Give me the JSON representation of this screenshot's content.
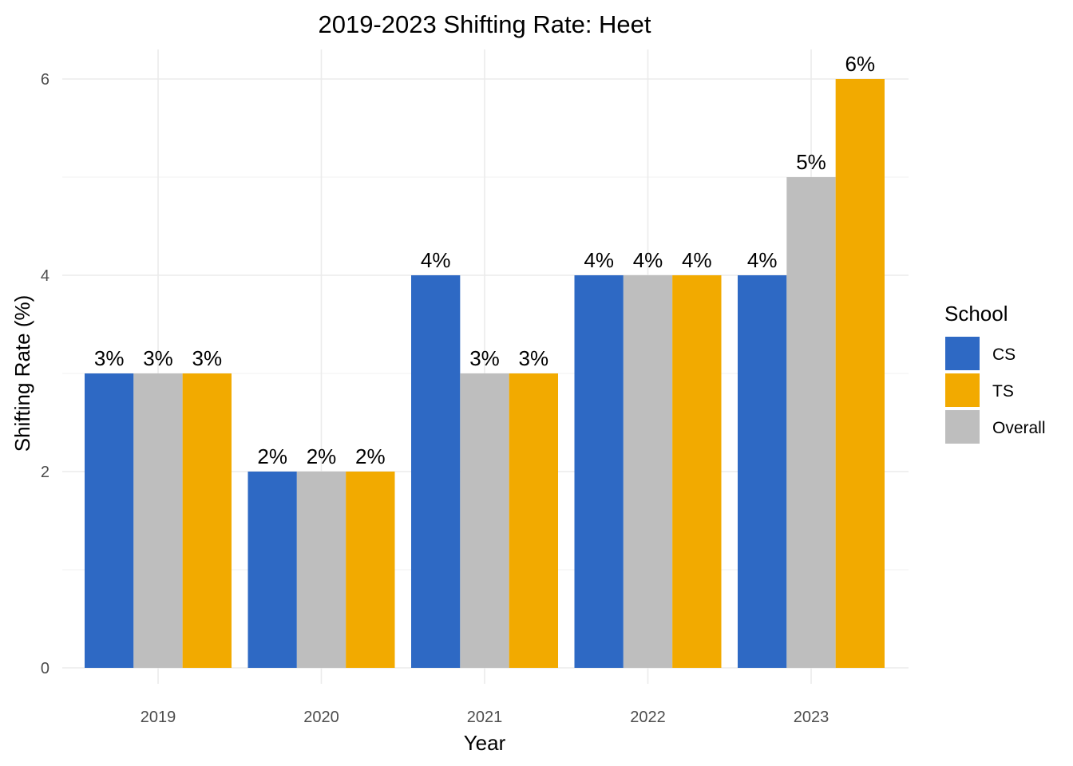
{
  "chart_data": {
    "type": "bar",
    "title": "2019-2023 Shifting Rate: Heet",
    "xlabel": "Year",
    "ylabel": "Shifting Rate (%)",
    "categories": [
      "2019",
      "2020",
      "2021",
      "2022",
      "2023"
    ],
    "ylim": [
      0,
      6.3
    ],
    "yticks": [
      0,
      2,
      4,
      6
    ],
    "grid": true,
    "legend": {
      "title": "School",
      "position": "right"
    },
    "series": [
      {
        "name": "CS",
        "color": "#2e69c4",
        "values": [
          3,
          2,
          4,
          4,
          4
        ],
        "labels": [
          "3%",
          "2%",
          "4%",
          "4%",
          "4%"
        ]
      },
      {
        "name": "Overall",
        "color": "#bebebe",
        "values": [
          3,
          2,
          3,
          4,
          5
        ],
        "labels": [
          "3%",
          "2%",
          "3%",
          "4%",
          "5%"
        ]
      },
      {
        "name": "TS",
        "color": "#f2aa00",
        "values": [
          3,
          2,
          3,
          4,
          6
        ],
        "labels": [
          "3%",
          "2%",
          "3%",
          "4%",
          "6%"
        ]
      }
    ],
    "legend_order": [
      "CS",
      "TS",
      "Overall"
    ]
  }
}
